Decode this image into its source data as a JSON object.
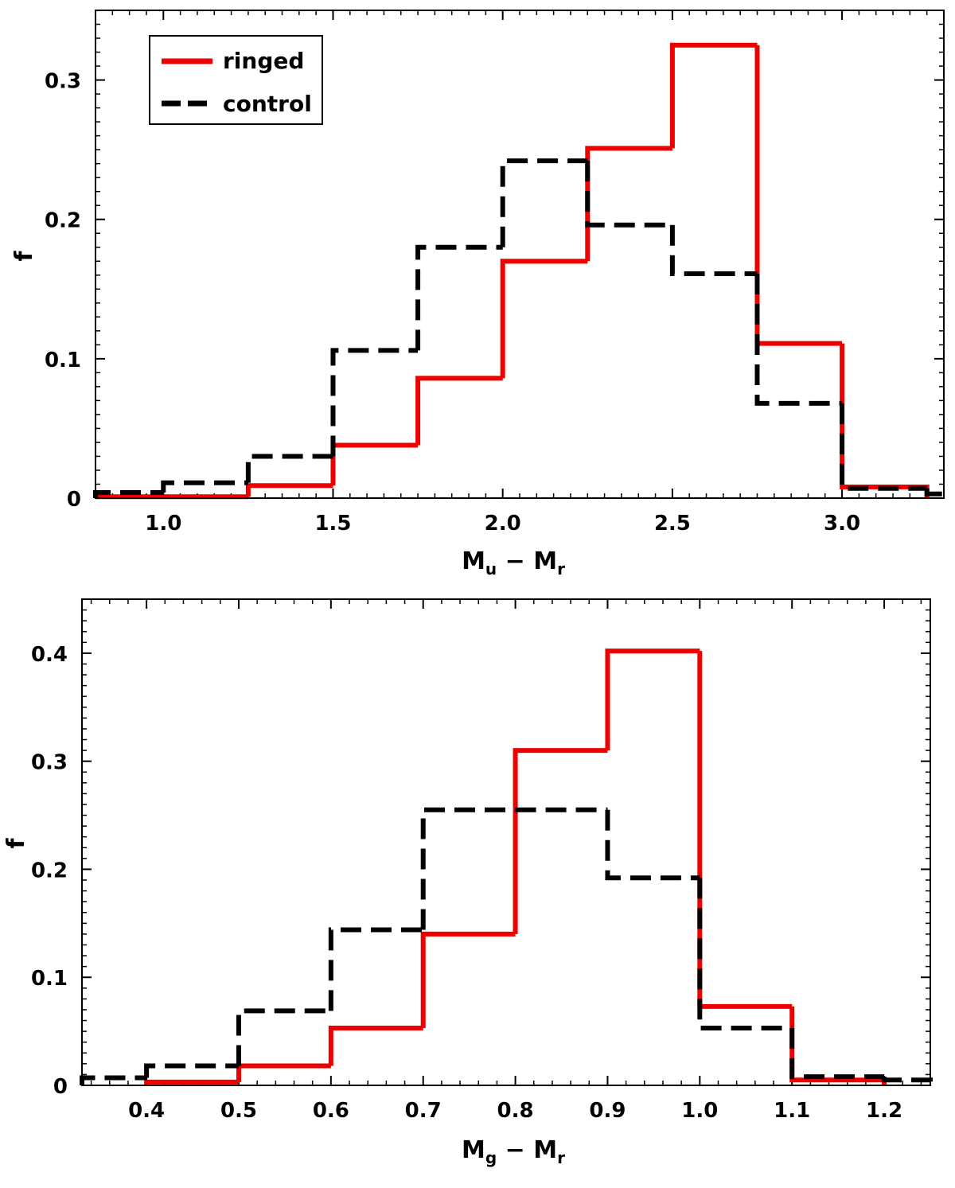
{
  "colors": {
    "ringed": "#ee0000",
    "control": "#000000"
  },
  "chart_data": [
    {
      "type": "histogram-step",
      "xlabel": {
        "main": "M",
        "sub1": "u",
        "mid": " − M",
        "sub2": "r"
      },
      "ylabel": "f",
      "xlim": [
        0.8,
        3.3
      ],
      "ylim": [
        0,
        0.35
      ],
      "xticks": [
        1.0,
        1.5,
        2.0,
        2.5,
        3.0
      ],
      "xtick_labels": [
        "1.0",
        "1.5",
        "2.0",
        "2.5",
        "3.0"
      ],
      "yticks": [
        0,
        0.1,
        0.2,
        0.3
      ],
      "ytick_labels": [
        "0",
        "0.1",
        "0.2",
        "0.3"
      ],
      "legend": {
        "placement": "top-left",
        "entries": [
          "ringed",
          "control"
        ]
      },
      "series": [
        {
          "name": "ringed",
          "style": "solid",
          "edges": [
            0.75,
            1.0,
            1.25,
            1.5,
            1.75,
            2.0,
            2.25,
            2.5,
            2.75,
            3.0,
            3.25
          ],
          "values": [
            0.001,
            0.001,
            0.009,
            0.038,
            0.086,
            0.17,
            0.251,
            0.325,
            0.111,
            0.008
          ]
        },
        {
          "name": "control",
          "style": "dashed",
          "edges": [
            0.75,
            1.0,
            1.25,
            1.5,
            1.75,
            2.0,
            2.25,
            2.5,
            2.75,
            3.0,
            3.25,
            3.5
          ],
          "values": [
            0.004,
            0.011,
            0.03,
            0.106,
            0.18,
            0.242,
            0.196,
            0.161,
            0.068,
            0.007,
            0.003
          ]
        }
      ]
    },
    {
      "type": "histogram-step",
      "xlabel": {
        "main": "M",
        "sub1": "g",
        "mid": " − M",
        "sub2": "r"
      },
      "ylabel": "f",
      "xlim": [
        0.33,
        1.25
      ],
      "ylim": [
        0,
        0.45
      ],
      "xticks": [
        0.4,
        0.5,
        0.6,
        0.7,
        0.8,
        0.9,
        1.0,
        1.1,
        1.2
      ],
      "xtick_labels": [
        "0.4",
        "0.5",
        "0.6",
        "0.7",
        "0.8",
        "0.9",
        "1.0",
        "1.1",
        "1.2"
      ],
      "yticks": [
        0,
        0.1,
        0.2,
        0.3,
        0.4
      ],
      "ytick_labels": [
        "0",
        "0.1",
        "0.2",
        "0.3",
        "0.4"
      ],
      "series": [
        {
          "name": "ringed",
          "style": "solid",
          "edges": [
            0.4,
            0.5,
            0.6,
            0.7,
            0.8,
            0.9,
            1.0,
            1.1,
            1.2
          ],
          "values": [
            0.003,
            0.018,
            0.053,
            0.14,
            0.31,
            0.402,
            0.073,
            0.005
          ]
        },
        {
          "name": "control",
          "style": "dashed",
          "edges": [
            0.3,
            0.4,
            0.5,
            0.6,
            0.7,
            0.8,
            0.9,
            1.0,
            1.1,
            1.2,
            1.3
          ],
          "values": [
            0.007,
            0.018,
            0.069,
            0.144,
            0.255,
            0.255,
            0.192,
            0.053,
            0.008,
            0.005
          ]
        }
      ]
    }
  ]
}
